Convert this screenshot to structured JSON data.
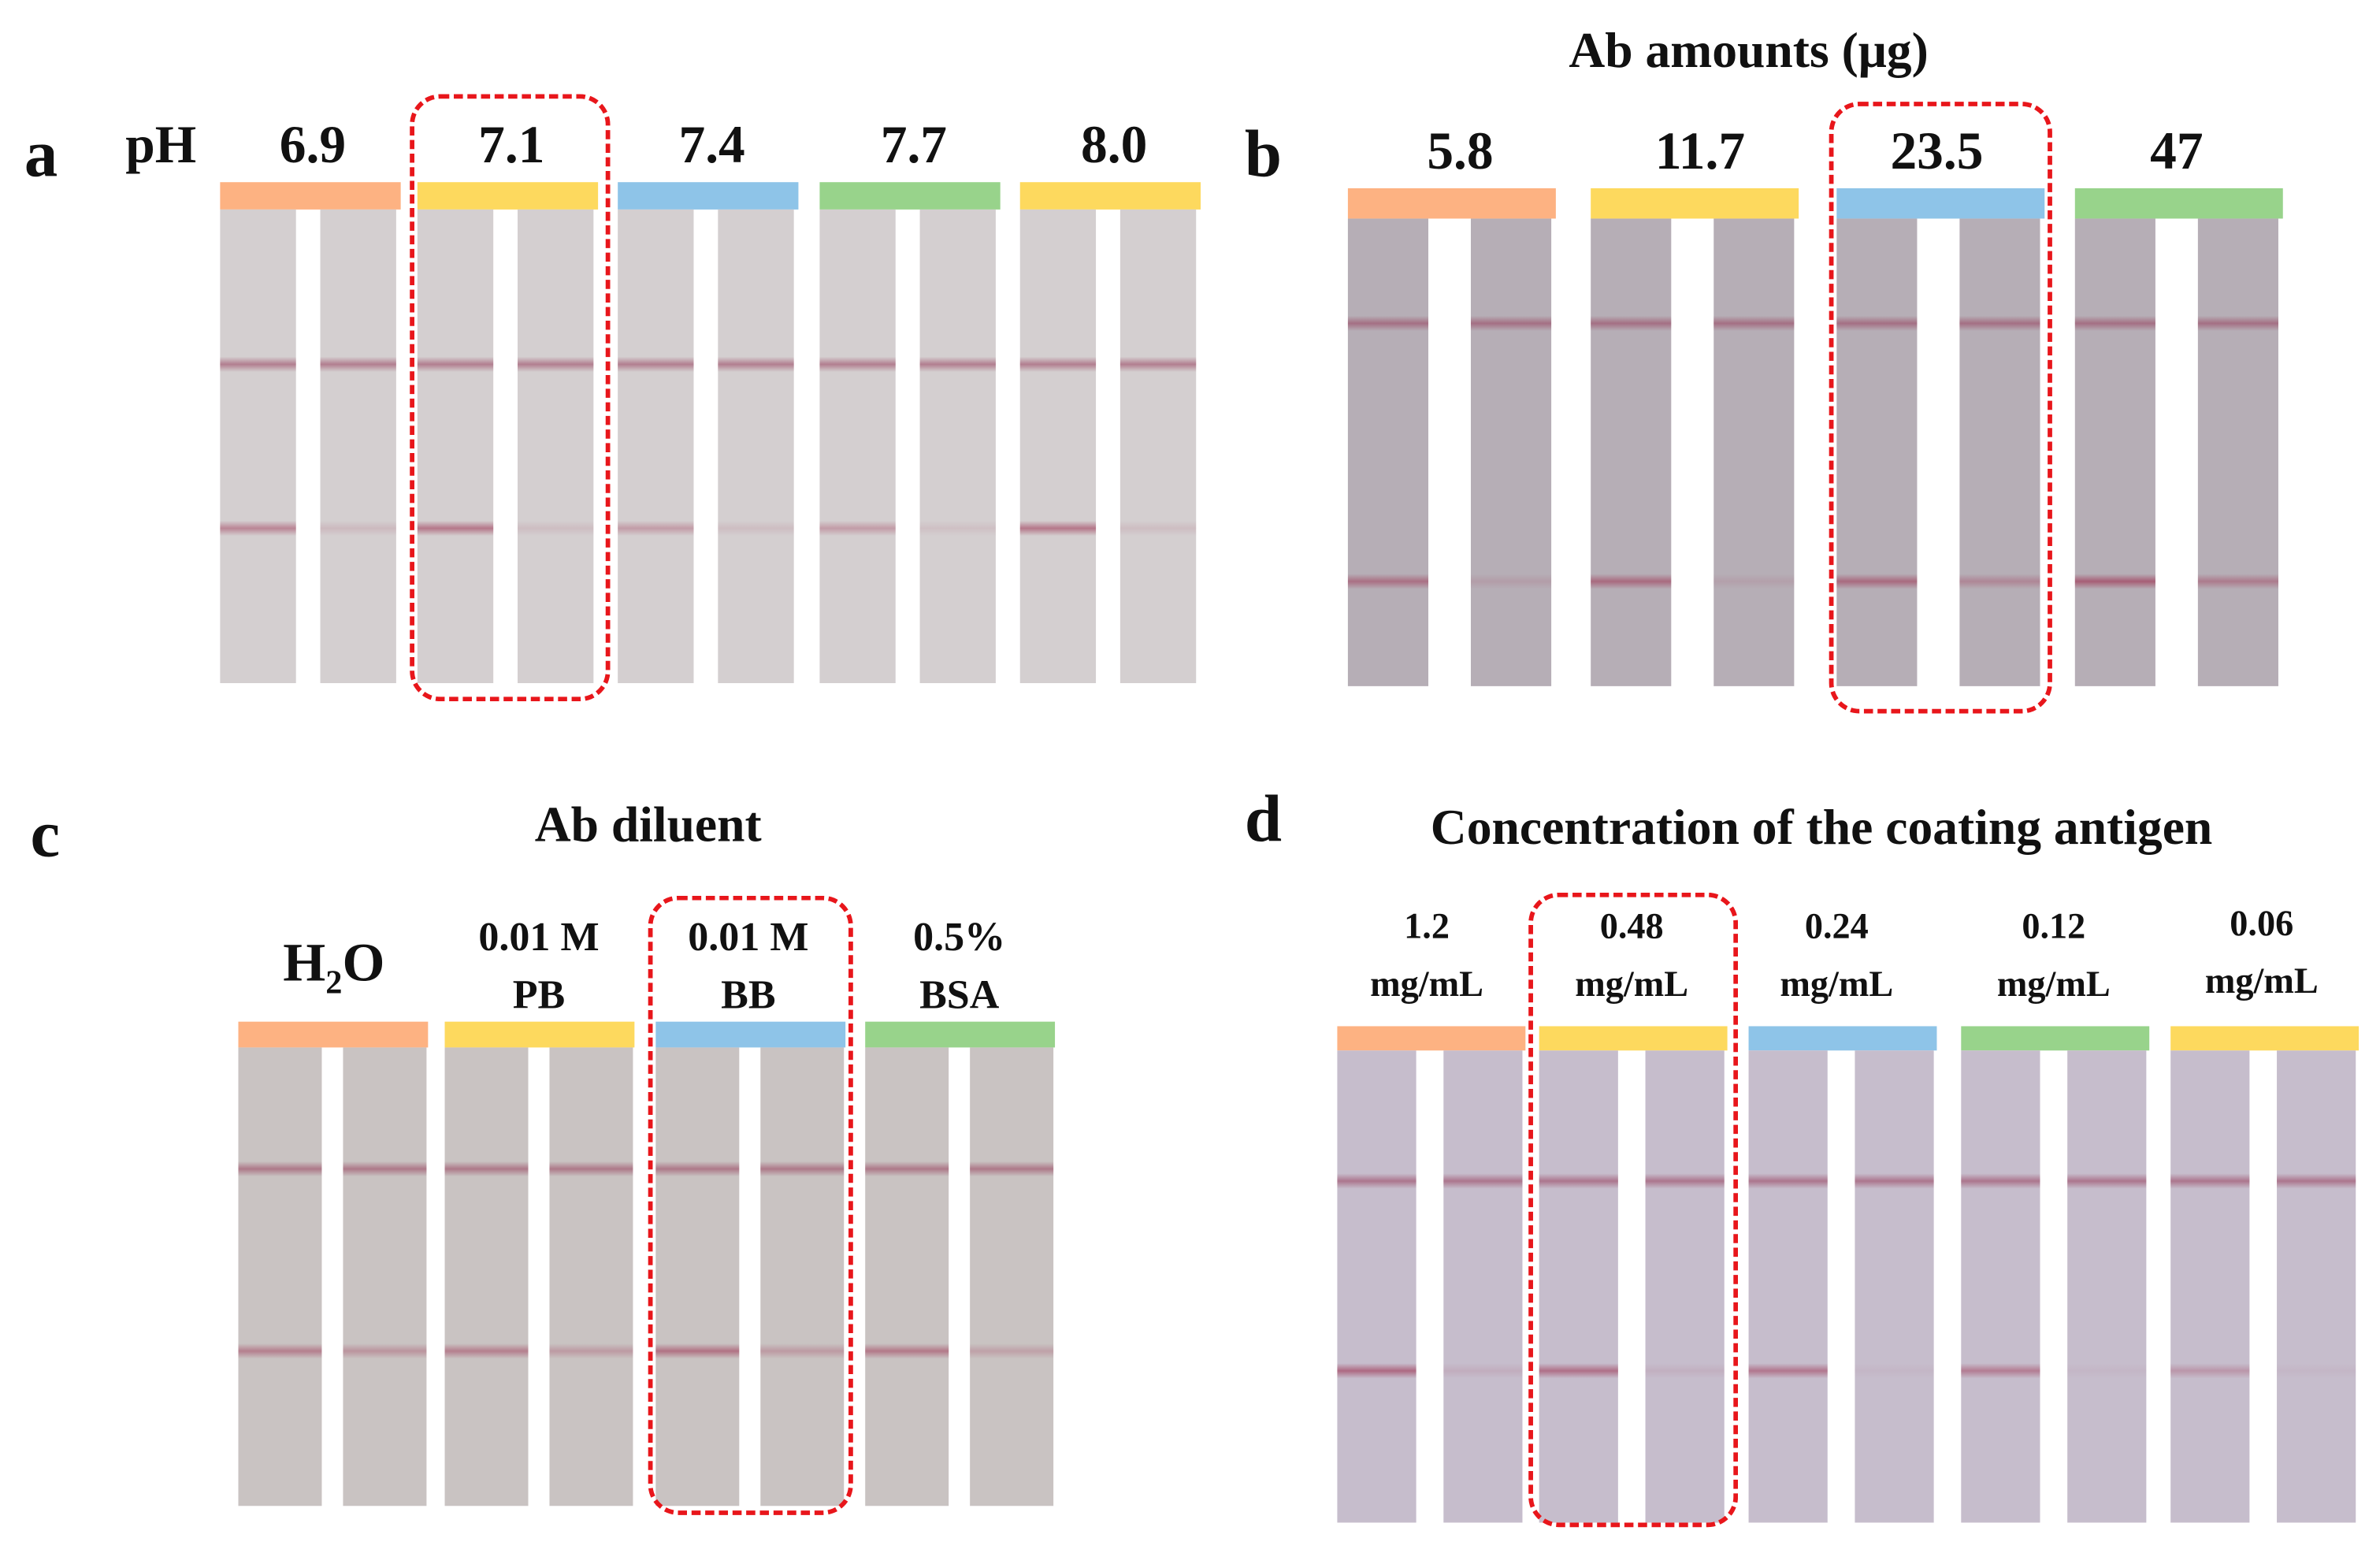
{
  "panels": {
    "a": {
      "letter": "a",
      "prefix": "pH",
      "labels": [
        "6.9",
        "7.1",
        "7.4",
        "7.7",
        "8.0"
      ],
      "bar_colors": [
        "#fdb282",
        "#fdd95e",
        "#8ec4e8",
        "#98d38b",
        "#fdd95e"
      ],
      "strip_color": "#d4cfd0",
      "highlighted": "7.1"
    },
    "b": {
      "letter": "b",
      "title": "Ab amounts (μg)",
      "labels": [
        "5.8",
        "11.7",
        "23.5",
        "47"
      ],
      "bar_colors": [
        "#fdb282",
        "#fdd95e",
        "#8ec4e8",
        "#98d38b"
      ],
      "strip_color": "#b6aeb6",
      "highlighted": "23.5"
    },
    "c": {
      "letter": "c",
      "title": "Ab diluent",
      "labels": [
        {
          "main": "H",
          "sub": "2",
          "tail": "O"
        },
        {
          "line1": "0.01 M",
          "line2": "PB"
        },
        {
          "line1": "0.01 M",
          "line2": "BB"
        },
        {
          "line1": "0.5%",
          "line2": "BSA"
        }
      ],
      "bar_colors": [
        "#fdb282",
        "#fdd95e",
        "#8ec4e8",
        "#98d38b"
      ],
      "strip_color": "#c9c3c2",
      "highlighted": "0.01 M BB"
    },
    "d": {
      "letter": "d",
      "title": "Concentration of the coating antigen",
      "labels": [
        {
          "line1": "1.2",
          "line2": "mg/mL"
        },
        {
          "line1": "0.48",
          "line2": "mg/mL"
        },
        {
          "line1": "0.24",
          "line2": "mg/mL"
        },
        {
          "line1": "0.12",
          "line2": "mg/mL"
        },
        {
          "line1": "0.06",
          "line2": "mg/mL"
        }
      ],
      "bar_colors": [
        "#fdb282",
        "#fdd95e",
        "#8ec4e8",
        "#98d38b",
        "#fdd95e"
      ],
      "strip_color": "#c6bdcc",
      "highlighted": "0.48 mg/mL"
    }
  }
}
